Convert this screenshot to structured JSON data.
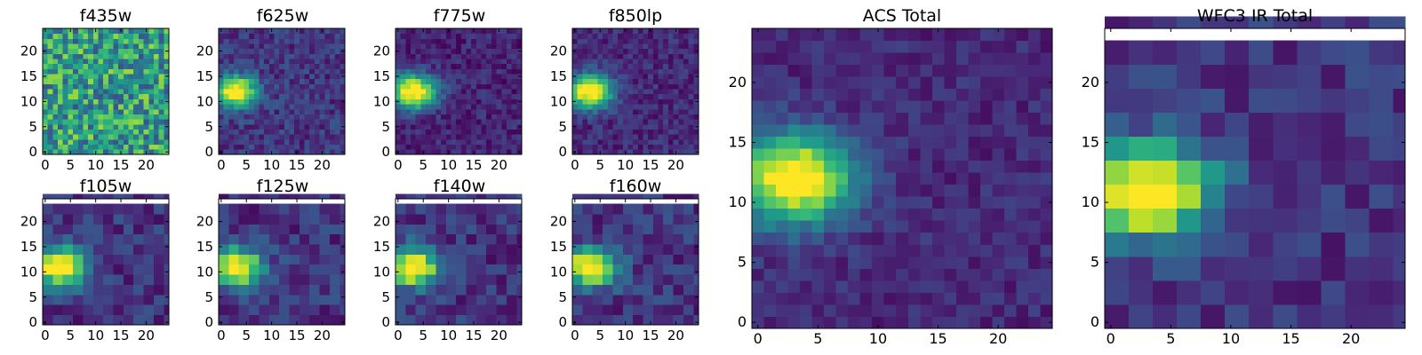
{
  "figure": {
    "colormap": "viridis",
    "colormap_stops": [
      "#440154",
      "#482878",
      "#3e4a89",
      "#31688e",
      "#26828e",
      "#1f9e89",
      "#35b779",
      "#6ece58",
      "#b5de2b",
      "#fde725"
    ],
    "background": "#ffffff"
  },
  "chart_data": [
    {
      "type": "heatmap",
      "title": "f435w",
      "grid_size": 25,
      "resolution": 1,
      "xlim": [
        -0.5,
        24.5
      ],
      "ylim": [
        -0.5,
        24.5
      ],
      "xticks": [
        0,
        5,
        10,
        15,
        20
      ],
      "yticks": [
        0,
        5,
        10,
        15,
        20
      ],
      "source": {
        "x": 3,
        "y": 12,
        "sx": 3.5,
        "sy": 2.8,
        "amp": 0.0
      },
      "background_level": 0.55,
      "noise": 0.3
    },
    {
      "type": "heatmap",
      "title": "f625w",
      "grid_size": 25,
      "resolution": 1,
      "xlim": [
        -0.5,
        24.5
      ],
      "ylim": [
        -0.5,
        24.5
      ],
      "xticks": [
        0,
        5,
        10,
        15,
        20
      ],
      "yticks": [
        0,
        5,
        10,
        15,
        20
      ],
      "source": {
        "x": 3,
        "y": 12,
        "sx": 2.8,
        "sy": 2.2,
        "amp": 0.95
      },
      "background_level": 0.16,
      "noise": 0.12
    },
    {
      "type": "heatmap",
      "title": "f775w",
      "grid_size": 25,
      "resolution": 1,
      "xlim": [
        -0.5,
        24.5
      ],
      "ylim": [
        -0.5,
        24.5
      ],
      "xticks": [
        0,
        5,
        10,
        15,
        20
      ],
      "yticks": [
        0,
        5,
        10,
        15,
        20
      ],
      "source": {
        "x": 3,
        "y": 12,
        "sx": 3.2,
        "sy": 2.4,
        "amp": 1.0
      },
      "background_level": 0.1,
      "noise": 0.1
    },
    {
      "type": "heatmap",
      "title": "f850lp",
      "grid_size": 25,
      "resolution": 1,
      "xlim": [
        -0.5,
        24.5
      ],
      "ylim": [
        -0.5,
        24.5
      ],
      "xticks": [
        0,
        5,
        10,
        15,
        20
      ],
      "yticks": [
        0,
        5,
        10,
        15,
        20
      ],
      "source": {
        "x": 3,
        "y": 12,
        "sx": 3.0,
        "sy": 2.3,
        "amp": 1.0
      },
      "background_level": 0.12,
      "noise": 0.1
    },
    {
      "type": "heatmap",
      "title": "f105w",
      "grid_size": 25,
      "resolution": 2,
      "xlim": [
        -0.5,
        24.5
      ],
      "ylim": [
        -0.5,
        24.5
      ],
      "xticks": [
        0,
        5,
        10,
        15,
        20
      ],
      "yticks": [
        0,
        5,
        10,
        15,
        20
      ],
      "source": {
        "x": 3,
        "y": 11,
        "sx": 3.5,
        "sy": 2.6,
        "amp": 1.0
      },
      "background_level": 0.15,
      "noise": 0.12
    },
    {
      "type": "heatmap",
      "title": "f125w",
      "grid_size": 25,
      "resolution": 2,
      "xlim": [
        -0.5,
        24.5
      ],
      "ylim": [
        -0.5,
        24.5
      ],
      "xticks": [
        0,
        5,
        10,
        15,
        20
      ],
      "yticks": [
        0,
        5,
        10,
        15,
        20
      ],
      "source": {
        "x": 3,
        "y": 11,
        "sx": 3.5,
        "sy": 2.6,
        "amp": 1.0
      },
      "background_level": 0.15,
      "noise": 0.12
    },
    {
      "type": "heatmap",
      "title": "f140w",
      "grid_size": 25,
      "resolution": 2,
      "xlim": [
        -0.5,
        24.5
      ],
      "ylim": [
        -0.5,
        24.5
      ],
      "xticks": [
        0,
        5,
        10,
        15,
        20
      ],
      "yticks": [
        0,
        5,
        10,
        15,
        20
      ],
      "source": {
        "x": 3,
        "y": 11,
        "sx": 3.6,
        "sy": 2.6,
        "amp": 1.0
      },
      "background_level": 0.15,
      "noise": 0.12
    },
    {
      "type": "heatmap",
      "title": "f160w",
      "grid_size": 25,
      "resolution": 2,
      "xlim": [
        -0.5,
        24.5
      ],
      "ylim": [
        -0.5,
        24.5
      ],
      "xticks": [
        0,
        5,
        10,
        15,
        20
      ],
      "yticks": [
        0,
        5,
        10,
        15,
        20
      ],
      "source": {
        "x": 3,
        "y": 11,
        "sx": 3.6,
        "sy": 2.6,
        "amp": 1.0
      },
      "background_level": 0.15,
      "noise": 0.12
    },
    {
      "type": "heatmap",
      "title": "ACS Total",
      "grid_size": 25,
      "resolution": 1,
      "xlim": [
        -0.5,
        24.5
      ],
      "ylim": [
        -0.5,
        24.5
      ],
      "xticks": [
        0,
        5,
        10,
        15,
        20
      ],
      "yticks": [
        0,
        5,
        10,
        15,
        20
      ],
      "source": {
        "x": 3,
        "y": 12,
        "sx": 3.4,
        "sy": 2.6,
        "amp": 1.0
      },
      "background_level": 0.12,
      "noise": 0.08
    },
    {
      "type": "heatmap",
      "title": "WFC3 IR Total",
      "grid_size": 25,
      "resolution": 2,
      "xlim": [
        -0.5,
        24.5
      ],
      "ylim": [
        -0.5,
        24.5
      ],
      "xticks": [
        0,
        5,
        10,
        15,
        20
      ],
      "yticks": [
        0,
        5,
        10,
        15,
        20
      ],
      "source": {
        "x": 3,
        "y": 11,
        "sx": 3.8,
        "sy": 2.8,
        "amp": 1.0
      },
      "background_level": 0.15,
      "noise": 0.1
    }
  ]
}
